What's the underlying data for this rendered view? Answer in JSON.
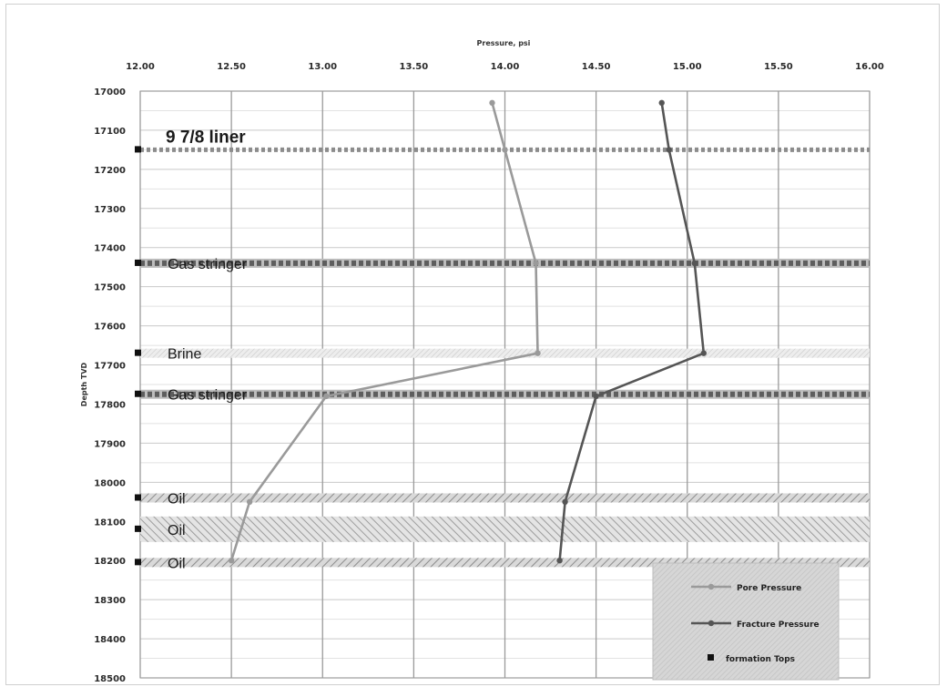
{
  "chart_data": {
    "type": "line",
    "title": "",
    "xlabel": "Pressure, psi",
    "ylabel": "Depth TVD",
    "xlim": [
      12.0,
      16.0
    ],
    "ylim": [
      17000,
      18500
    ],
    "y_inverted": true,
    "x_axis_position": "top",
    "x_ticks": [
      "12.00",
      "12.50",
      "13.00",
      "13.50",
      "14.00",
      "14.50",
      "15.00",
      "15.50",
      "16.00"
    ],
    "y_ticks": [
      "17000",
      "17100",
      "17200",
      "17300",
      "17400",
      "17500",
      "17600",
      "17700",
      "17800",
      "17900",
      "18000",
      "18100",
      "18200",
      "18300",
      "18400",
      "18500"
    ],
    "grid": true,
    "series": [
      {
        "name": "Pore Pressure",
        "color": "#9a9a9a",
        "points": [
          [
            13.93,
            17030
          ],
          [
            14.0,
            17150
          ],
          [
            14.17,
            17440
          ],
          [
            14.18,
            17670
          ],
          [
            13.02,
            17780
          ],
          [
            12.6,
            18050
          ],
          [
            12.5,
            18200
          ]
        ]
      },
      {
        "name": "Fracture Pressure",
        "color": "#555555",
        "points": [
          [
            14.86,
            17030
          ],
          [
            14.9,
            17150
          ],
          [
            15.04,
            17440
          ],
          [
            15.09,
            17670
          ],
          [
            14.5,
            17780
          ],
          [
            14.33,
            18050
          ],
          [
            14.3,
            18200
          ]
        ]
      }
    ],
    "formation_tops": {
      "name": "formation Tops",
      "color": "#111111",
      "items": [
        {
          "label": "9 7/8 liner",
          "depth": 17150,
          "style": "thin-dashed"
        },
        {
          "label": "Gas stringer",
          "depth": 17440,
          "style": "dashed"
        },
        {
          "label": "Brine",
          "depth": 17670,
          "style": "light-band"
        },
        {
          "label": "Gas stringer",
          "depth": 17775,
          "style": "dashed"
        },
        {
          "label": "Oil",
          "depth": 18040,
          "style": "hatched-band"
        },
        {
          "label": "Oil",
          "depth": 18120,
          "style": "wide-hatched-band"
        },
        {
          "label": "Oil",
          "depth": 18205,
          "style": "hatched-band"
        }
      ]
    },
    "legend": {
      "position": "bottom-right",
      "entries": [
        "Pore Pressure",
        "Fracture Pressure",
        "formation Tops"
      ]
    }
  }
}
